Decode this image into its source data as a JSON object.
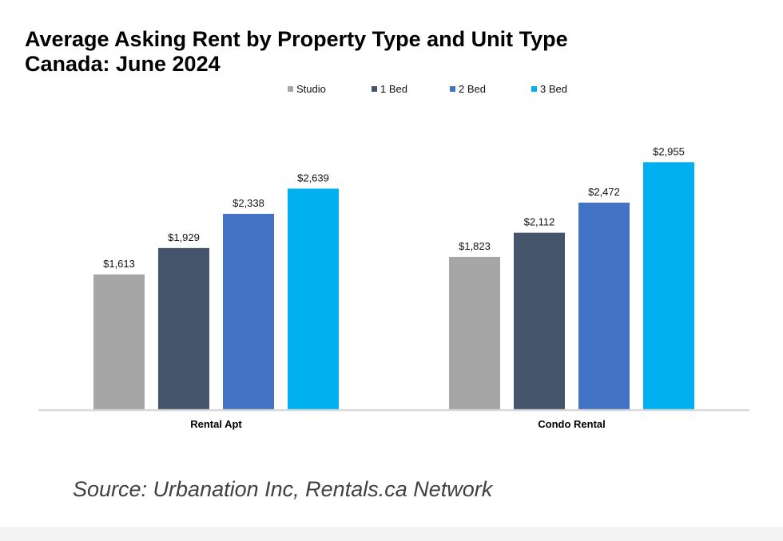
{
  "chart_data": {
    "type": "bar",
    "title": "Average Asking Rent by Property Type and Unit Type",
    "subtitle": "Canada: June 2024",
    "categories": [
      "Rental Apt",
      "Condo Rental"
    ],
    "series": [
      {
        "name": "Studio",
        "color": "#a6a6a6",
        "values": [
          1613,
          1823
        ],
        "labels": [
          "$1,613",
          "$1,823"
        ]
      },
      {
        "name": "1 Bed",
        "color": "#44546a",
        "values": [
          1929,
          2112
        ],
        "labels": [
          "$1,929",
          "$2,112"
        ]
      },
      {
        "name": "2 Bed",
        "color": "#4472c4",
        "values": [
          2338,
          2472
        ],
        "labels": [
          "$2,338",
          "$2,472"
        ]
      },
      {
        "name": "3 Bed",
        "color": "#00b0f0",
        "values": [
          2639,
          2955
        ],
        "labels": [
          "$2,639",
          "$2,955"
        ]
      }
    ],
    "xlabel": "",
    "ylabel": "",
    "ylim": [
      0,
      3200
    ],
    "grid": false,
    "legend": "top-center"
  },
  "source": "Source: Urbanation Inc, Rentals.ca Network"
}
